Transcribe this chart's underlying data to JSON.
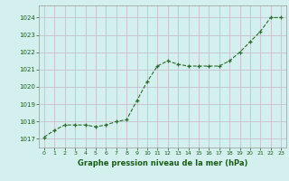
{
  "x": [
    0,
    1,
    2,
    3,
    4,
    5,
    6,
    7,
    8,
    9,
    10,
    11,
    12,
    13,
    14,
    15,
    16,
    17,
    18,
    19,
    20,
    21,
    22,
    23
  ],
  "y": [
    1017.1,
    1017.5,
    1017.8,
    1017.8,
    1017.8,
    1017.7,
    1017.8,
    1018.0,
    1018.1,
    1019.2,
    1020.3,
    1021.2,
    1021.5,
    1021.3,
    1021.2,
    1021.2,
    1021.2,
    1021.2,
    1021.5,
    1022.0,
    1022.6,
    1023.2,
    1024.0,
    1024.0
  ],
  "line_color": "#2d6b2d",
  "marker_color": "#2d6b2d",
  "bg_color": "#d4f0ee",
  "grid_color": "#c8bece",
  "axis_label_color": "#1a5c1a",
  "tick_label_color": "#1a5c1a",
  "xlabel": "Graphe pression niveau de la mer (hPa)",
  "ylim_min": 1016.5,
  "ylim_max": 1024.7,
  "xlim_min": -0.5,
  "xlim_max": 23.5,
  "yticks": [
    1017,
    1018,
    1019,
    1020,
    1021,
    1022,
    1023,
    1024
  ],
  "xticks": [
    0,
    1,
    2,
    3,
    4,
    5,
    6,
    7,
    8,
    9,
    10,
    11,
    12,
    13,
    14,
    15,
    16,
    17,
    18,
    19,
    20,
    21,
    22,
    23
  ]
}
